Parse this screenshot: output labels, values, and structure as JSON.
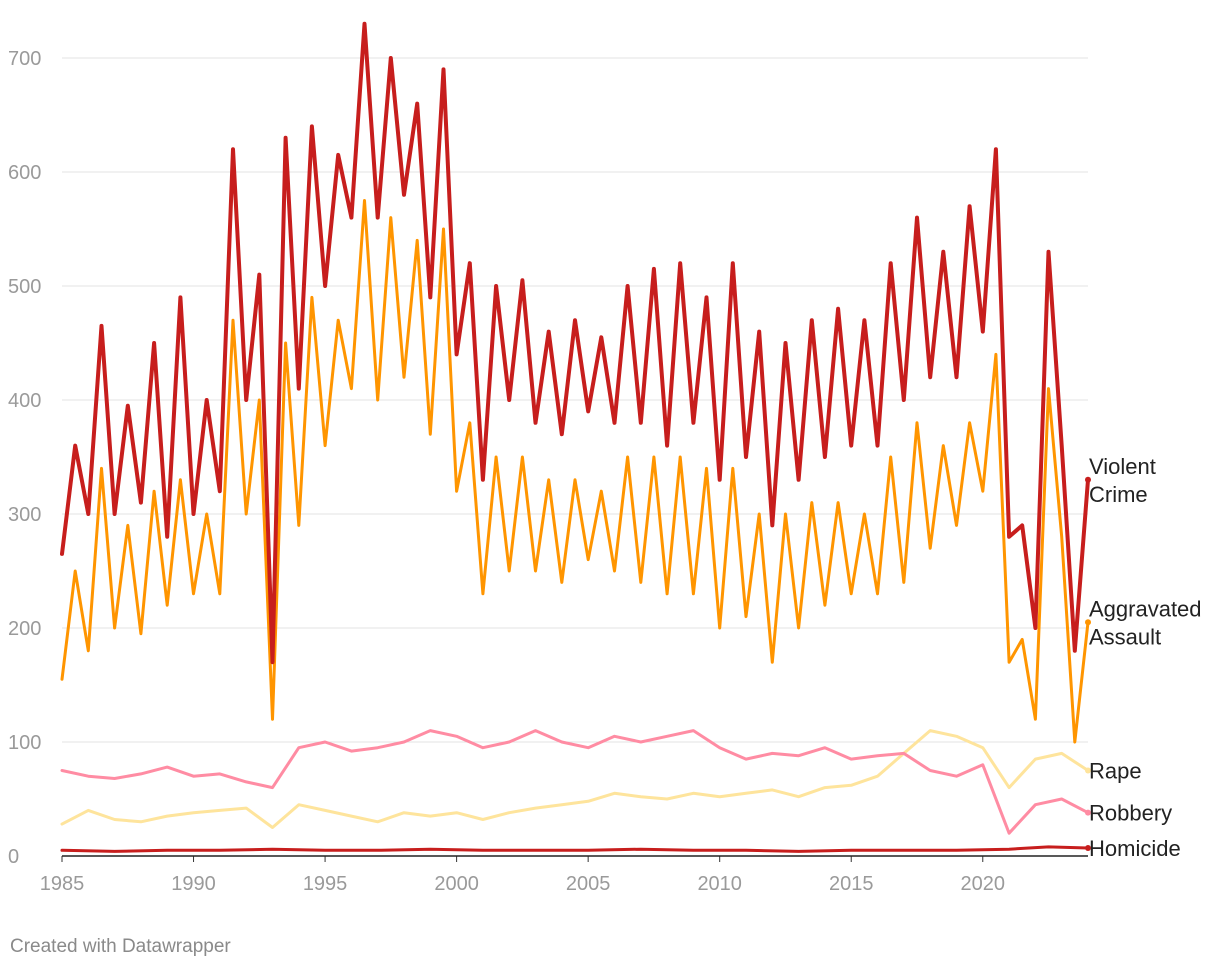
{
  "credit": "Created with Datawrapper",
  "chart_data": {
    "type": "line",
    "title": "",
    "xlabel": "",
    "ylabel": "",
    "xlim": [
      1985,
      2024
    ],
    "ylim": [
      0,
      700
    ],
    "x_ticks": [
      1985,
      1990,
      1995,
      2000,
      2005,
      2010,
      2015,
      2020
    ],
    "y_ticks": [
      0,
      100,
      200,
      300,
      400,
      500,
      600,
      700
    ],
    "grid": true,
    "granularity": "monthly (approximate, sampled every 6 months)",
    "series": [
      {
        "name": "Violent Crime",
        "label_lines": [
          "Violent",
          "Crime"
        ],
        "color": "#c71e1d",
        "x": [
          1985.0,
          1985.5,
          1986.0,
          1986.5,
          1987.0,
          1987.5,
          1988.0,
          1988.5,
          1989.0,
          1989.5,
          1990.0,
          1990.5,
          1991.0,
          1991.5,
          1992.0,
          1992.5,
          1993.0,
          1993.5,
          1994.0,
          1994.5,
          1995.0,
          1995.5,
          1996.0,
          1996.5,
          1997.0,
          1997.5,
          1998.0,
          1998.5,
          1999.0,
          1999.5,
          2000.0,
          2000.5,
          2001.0,
          2001.5,
          2002.0,
          2002.5,
          2003.0,
          2003.5,
          2004.0,
          2004.5,
          2005.0,
          2005.5,
          2006.0,
          2006.5,
          2007.0,
          2007.5,
          2008.0,
          2008.5,
          2009.0,
          2009.5,
          2010.0,
          2010.5,
          2011.0,
          2011.5,
          2012.0,
          2012.5,
          2013.0,
          2013.5,
          2014.0,
          2014.5,
          2015.0,
          2015.5,
          2016.0,
          2016.5,
          2017.0,
          2017.5,
          2018.0,
          2018.5,
          2019.0,
          2019.5,
          2020.0,
          2020.5,
          2021.0,
          2021.5,
          2022.0,
          2022.5,
          2023.0,
          2023.5,
          2024.0
        ],
        "values": [
          265,
          360,
          300,
          465,
          300,
          395,
          310,
          450,
          280,
          490,
          300,
          400,
          320,
          620,
          400,
          510,
          170,
          630,
          410,
          640,
          500,
          615,
          560,
          730,
          560,
          700,
          580,
          660,
          490,
          690,
          440,
          520,
          330,
          500,
          400,
          505,
          380,
          460,
          370,
          470,
          390,
          455,
          380,
          500,
          380,
          515,
          360,
          520,
          380,
          490,
          330,
          520,
          350,
          460,
          290,
          450,
          330,
          470,
          350,
          480,
          360,
          470,
          360,
          520,
          400,
          560,
          420,
          530,
          420,
          570,
          460,
          620,
          280,
          290,
          200,
          530,
          360,
          180,
          330
        ]
      },
      {
        "name": "Aggravated Assault",
        "label_lines": [
          "Aggravated",
          "Assault"
        ],
        "color": "#ff9500",
        "x": [
          1985.0,
          1985.5,
          1986.0,
          1986.5,
          1987.0,
          1987.5,
          1988.0,
          1988.5,
          1989.0,
          1989.5,
          1990.0,
          1990.5,
          1991.0,
          1991.5,
          1992.0,
          1992.5,
          1993.0,
          1993.5,
          1994.0,
          1994.5,
          1995.0,
          1995.5,
          1996.0,
          1996.5,
          1997.0,
          1997.5,
          1998.0,
          1998.5,
          1999.0,
          1999.5,
          2000.0,
          2000.5,
          2001.0,
          2001.5,
          2002.0,
          2002.5,
          2003.0,
          2003.5,
          2004.0,
          2004.5,
          2005.0,
          2005.5,
          2006.0,
          2006.5,
          2007.0,
          2007.5,
          2008.0,
          2008.5,
          2009.0,
          2009.5,
          2010.0,
          2010.5,
          2011.0,
          2011.5,
          2012.0,
          2012.5,
          2013.0,
          2013.5,
          2014.0,
          2014.5,
          2015.0,
          2015.5,
          2016.0,
          2016.5,
          2017.0,
          2017.5,
          2018.0,
          2018.5,
          2019.0,
          2019.5,
          2020.0,
          2020.5,
          2021.0,
          2021.5,
          2022.0,
          2022.5,
          2023.0,
          2023.5,
          2024.0
        ],
        "values": [
          155,
          250,
          180,
          340,
          200,
          290,
          195,
          320,
          220,
          330,
          230,
          300,
          230,
          470,
          300,
          400,
          120,
          450,
          290,
          490,
          360,
          470,
          410,
          575,
          400,
          560,
          420,
          540,
          370,
          550,
          320,
          380,
          230,
          350,
          250,
          350,
          250,
          330,
          240,
          330,
          260,
          320,
          250,
          350,
          240,
          350,
          230,
          350,
          230,
          340,
          200,
          340,
          210,
          300,
          170,
          300,
          200,
          310,
          220,
          310,
          230,
          300,
          230,
          350,
          240,
          380,
          270,
          360,
          290,
          380,
          320,
          440,
          170,
          190,
          120,
          410,
          280,
          100,
          205
        ]
      },
      {
        "name": "Rape",
        "label_lines": [
          "Rape"
        ],
        "color": "#fee49c",
        "x": [
          1985.0,
          1986.0,
          1987.0,
          1988.0,
          1989.0,
          1990.0,
          1991.0,
          1992.0,
          1993.0,
          1994.0,
          1995.0,
          1996.0,
          1997.0,
          1998.0,
          1999.0,
          2000.0,
          2001.0,
          2002.0,
          2003.0,
          2004.0,
          2005.0,
          2006.0,
          2007.0,
          2008.0,
          2009.0,
          2010.0,
          2011.0,
          2012.0,
          2013.0,
          2014.0,
          2015.0,
          2016.0,
          2017.0,
          2018.0,
          2019.0,
          2020.0,
          2021.0,
          2022.0,
          2023.0,
          2024.0
        ],
        "values": [
          28,
          40,
          32,
          30,
          35,
          38,
          40,
          42,
          25,
          45,
          40,
          35,
          30,
          38,
          35,
          38,
          32,
          38,
          42,
          45,
          48,
          55,
          52,
          50,
          55,
          52,
          55,
          58,
          52,
          60,
          62,
          70,
          90,
          110,
          105,
          95,
          60,
          85,
          90,
          75
        ]
      },
      {
        "name": "Robbery",
        "label_lines": [
          "Robbery"
        ],
        "color": "#ff8ca3",
        "x": [
          1985.0,
          1986.0,
          1987.0,
          1988.0,
          1989.0,
          1990.0,
          1991.0,
          1992.0,
          1993.0,
          1994.0,
          1995.0,
          1996.0,
          1997.0,
          1998.0,
          1999.0,
          2000.0,
          2001.0,
          2002.0,
          2003.0,
          2004.0,
          2005.0,
          2006.0,
          2007.0,
          2008.0,
          2009.0,
          2010.0,
          2011.0,
          2012.0,
          2013.0,
          2014.0,
          2015.0,
          2016.0,
          2017.0,
          2018.0,
          2019.0,
          2020.0,
          2021.0,
          2022.0,
          2023.0,
          2024.0
        ],
        "values": [
          75,
          70,
          68,
          72,
          78,
          70,
          72,
          65,
          60,
          95,
          100,
          92,
          95,
          100,
          110,
          105,
          95,
          100,
          110,
          100,
          95,
          105,
          100,
          105,
          110,
          95,
          85,
          90,
          88,
          95,
          85,
          88,
          90,
          75,
          70,
          80,
          20,
          45,
          50,
          38
        ]
      },
      {
        "name": "Homicide",
        "label_lines": [
          "Homicide"
        ],
        "color": "#c71e1d",
        "x": [
          1985.0,
          1987.0,
          1989.0,
          1991.0,
          1993.0,
          1995.0,
          1997.0,
          1999.0,
          2001.0,
          2003.0,
          2005.0,
          2007.0,
          2009.0,
          2011.0,
          2013.0,
          2015.0,
          2017.0,
          2019.0,
          2021.0,
          2022.5,
          2024.0
        ],
        "values": [
          5,
          4,
          5,
          5,
          6,
          5,
          5,
          6,
          5,
          5,
          5,
          6,
          5,
          5,
          4,
          5,
          5,
          5,
          6,
          8,
          7
        ]
      }
    ]
  }
}
